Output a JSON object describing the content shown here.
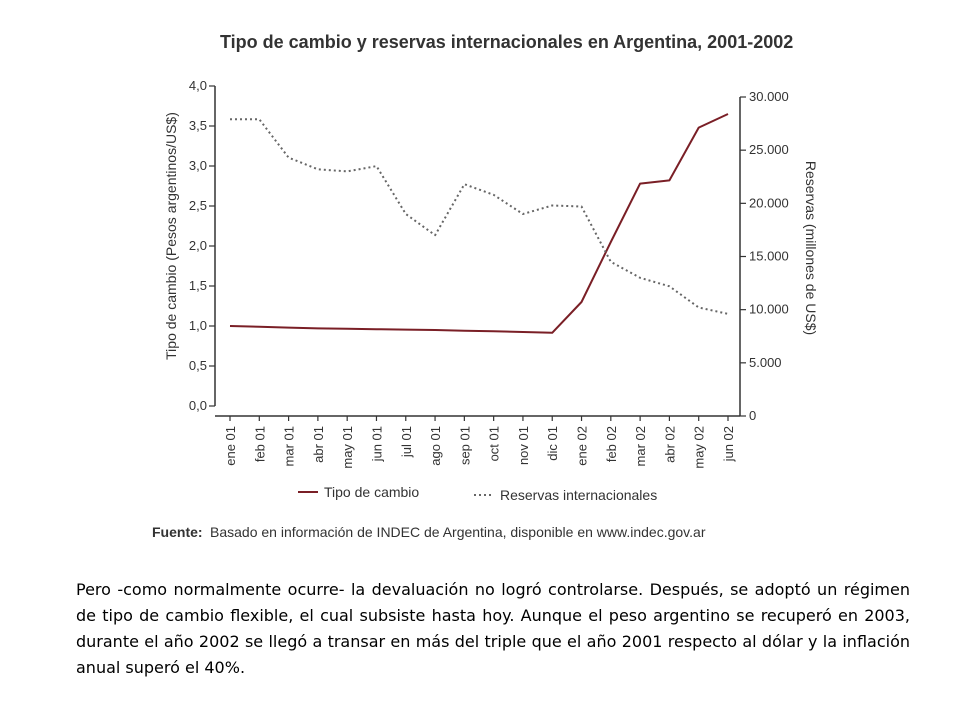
{
  "chart_data": {
    "type": "line",
    "title": "Tipo de cambio y reservas internacionales en Argentina, 2001-2002",
    "categories": [
      "ene 01",
      "feb 01",
      "mar 01",
      "abr 01",
      "may 01",
      "jun 01",
      "jul 01",
      "ago 01",
      "sep 01",
      "oct 01",
      "nov 01",
      "dic 01",
      "ene 02",
      "feb 02",
      "mar 02",
      "abr 02",
      "may 02",
      "jun 02"
    ],
    "series": [
      {
        "name": "Tipo de cambio",
        "axis": "left",
        "color": "#7a1f26",
        "style": "solid",
        "values": [
          1.0,
          0.99,
          0.98,
          0.97,
          0.965,
          0.96,
          0.955,
          0.95,
          0.94,
          0.935,
          0.925,
          0.915,
          1.3,
          2.05,
          2.78,
          2.82,
          3.48,
          3.65
        ]
      },
      {
        "name": "Reservas internacionales",
        "axis": "right",
        "color": "#666666",
        "style": "dotted",
        "values": [
          27900,
          27900,
          24300,
          23200,
          23000,
          23500,
          19000,
          17000,
          21800,
          20800,
          19000,
          19800,
          19700,
          14500,
          13000,
          12200,
          10200,
          9600
        ]
      }
    ],
    "ylabel": "Tipo de cambio (Pesos argentinos/US$)",
    "y2label": "Reservas (millones de US$)",
    "ylim": [
      0,
      4.0
    ],
    "y2lim": [
      0,
      30000
    ],
    "yticks": [
      "0,0",
      "0,5",
      "1,0",
      "1,5",
      "2,0",
      "2,5",
      "3,0",
      "3,5",
      "4,0"
    ],
    "y2ticks": [
      "0",
      "5.000",
      "10.000",
      "15.000",
      "20.000",
      "25.000",
      "30.000"
    ],
    "grid": false,
    "legend_position": "bottom"
  },
  "source": {
    "label": "Fuente:",
    "text": "Basado en información de INDEC de Argentina, disponible en www.indec.gov.ar"
  },
  "body_text": "Pero -como normalmente ocurre- la devaluación no logró controlarse. Después, se adoptó un régimen de tipo de cambio flexible, el cual subsiste hasta hoy. Aunque el peso argentino se recuperó en 2003, durante el año 2002 se llegó a transar en más del triple que el año 2001 respecto al dólar y la inflación anual superó el 40%."
}
